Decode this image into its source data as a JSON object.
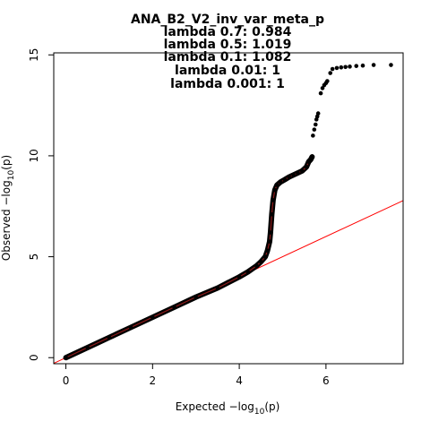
{
  "chart_data": {
    "type": "scatter",
    "title_lines": [
      "ANA_B2_V2_inv_var_meta_p",
      "lambda 0.7: 0.984",
      "lambda 0.5: 1.019",
      "lambda 0.1: 1.082",
      "lambda 0.01: 1",
      "lambda 0.001: 1"
    ],
    "xlabel": {
      "prefix": "Expected  −log",
      "sub": "10",
      "suffix": "(p)"
    },
    "ylabel": {
      "prefix": "Observed  −log",
      "sub": "10",
      "suffix": "(p)"
    },
    "xlim": [
      -0.28,
      7.78
    ],
    "ylim": [
      -0.3,
      15.1
    ],
    "xticks": [
      0,
      2,
      4,
      6
    ],
    "yticks": [
      0,
      5,
      10,
      15
    ],
    "reference_line": {
      "slope": 1,
      "intercept": 0,
      "color": "#ff0000"
    },
    "point_color": "#000000",
    "curve_color": "#8b1a1a",
    "series": [
      {
        "points": [
          [
            0,
            0
          ],
          [
            0.5,
            0.5
          ],
          [
            1,
            1
          ],
          [
            1.5,
            1.5
          ],
          [
            2,
            2
          ],
          [
            2.5,
            2.5
          ],
          [
            3,
            3
          ],
          [
            3.5,
            3.45
          ],
          [
            4,
            4.0
          ],
          [
            4.2,
            4.25
          ],
          [
            4.4,
            4.55
          ],
          [
            4.5,
            4.75
          ],
          [
            4.6,
            5.0
          ],
          [
            4.65,
            5.3
          ],
          [
            4.7,
            5.75
          ],
          [
            4.72,
            6.2
          ],
          [
            4.75,
            7.1
          ],
          [
            4.78,
            7.8
          ],
          [
            4.82,
            8.3
          ],
          [
            4.87,
            8.55
          ],
          [
            4.95,
            8.7
          ],
          [
            5.05,
            8.82
          ],
          [
            5.15,
            8.95
          ],
          [
            5.25,
            9.05
          ],
          [
            5.35,
            9.15
          ],
          [
            5.45,
            9.25
          ],
          [
            5.55,
            9.45
          ],
          [
            5.6,
            9.7
          ],
          [
            5.65,
            9.82
          ],
          [
            5.68,
            9.95
          ]
        ]
      },
      {
        "points": [
          [
            5.7,
            11.0
          ],
          [
            5.73,
            11.3
          ],
          [
            5.76,
            11.55
          ],
          [
            5.78,
            11.8
          ],
          [
            5.8,
            11.95
          ],
          [
            5.82,
            12.1
          ],
          [
            5.88,
            13.1
          ],
          [
            5.92,
            13.35
          ],
          [
            5.96,
            13.5
          ],
          [
            6.0,
            13.6
          ],
          [
            6.03,
            13.7
          ],
          [
            6.1,
            14.1
          ],
          [
            6.15,
            14.3
          ],
          [
            6.25,
            14.35
          ],
          [
            6.35,
            14.38
          ],
          [
            6.45,
            14.4
          ],
          [
            6.55,
            14.42
          ],
          [
            6.7,
            14.45
          ],
          [
            6.85,
            14.47
          ],
          [
            7.1,
            14.5
          ],
          [
            7.5,
            14.5
          ]
        ]
      }
    ]
  }
}
